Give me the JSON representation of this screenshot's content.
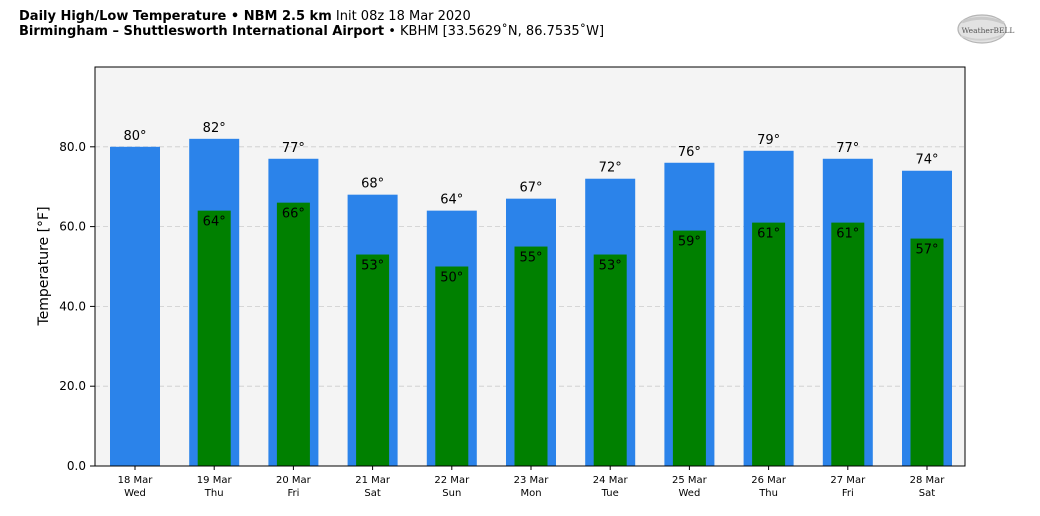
{
  "header": {
    "title_bold": "Daily High/Low Temperature • NBM 2.5 km",
    "init_text": "Init 08z 18 Mar 2020",
    "location_bold": "Birmingham – Shuttlesworth International Airport",
    "location_rest": "• KBHM [33.5629˚N, 86.7535˚W]"
  },
  "logo": {
    "text": "WeatherBELL",
    "icon": "weatherbell-logo"
  },
  "colors": {
    "high": "#2b83ea",
    "low": "#008000",
    "plot_bg": "#f4f4f4",
    "grid": "#cccccc"
  },
  "chart_data": {
    "type": "bar",
    "title": "Daily High/Low Temperature • NBM 2.5 km",
    "ylabel": "Temperature [°F]",
    "xlabel": "",
    "ylim": [
      0,
      100
    ],
    "yticks": [
      0,
      20,
      40,
      60,
      80
    ],
    "ytick_labels": [
      "0.0",
      "20.0",
      "40.0",
      "60.0",
      "80.0"
    ],
    "grid": true,
    "categories": [
      "18 Mar",
      "19 Mar",
      "20 Mar",
      "21 Mar",
      "22 Mar",
      "23 Mar",
      "24 Mar",
      "25 Mar",
      "26 Mar",
      "27 Mar",
      "28 Mar"
    ],
    "weekdays": [
      "Wed",
      "Thu",
      "Fri",
      "Sat",
      "Sun",
      "Mon",
      "Tue",
      "Wed",
      "Thu",
      "Fri",
      "Sat"
    ],
    "series": [
      {
        "key": "high",
        "values": [
          80,
          82,
          77,
          68,
          64,
          67,
          72,
          76,
          79,
          77,
          74
        ],
        "labels": [
          "80°",
          "82°",
          "77°",
          "68°",
          "64°",
          "67°",
          "72°",
          "76°",
          "79°",
          "77°",
          "74°"
        ]
      },
      {
        "key": "low",
        "values": [
          null,
          64,
          66,
          53,
          50,
          55,
          53,
          59,
          61,
          61,
          57
        ],
        "labels": [
          "",
          "64°",
          "66°",
          "53°",
          "50°",
          "55°",
          "53°",
          "59°",
          "61°",
          "61°",
          "57°"
        ]
      }
    ]
  }
}
